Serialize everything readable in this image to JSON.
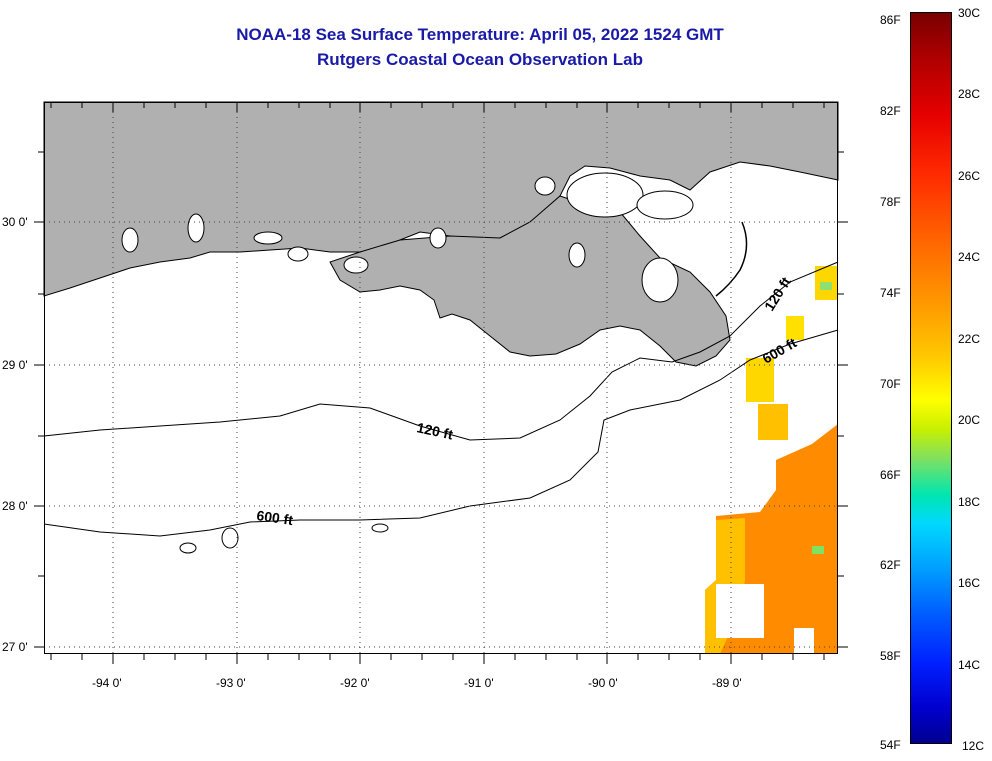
{
  "header": {
    "title": "NOAA-18 Sea Surface Temperature:  April 05, 2022 1524 GMT",
    "subtitle": "Rutgers Coastal Ocean Observation Lab"
  },
  "axes": {
    "lat_labels": [
      "30 0'",
      "29 0'",
      "28 0'",
      "27 0'"
    ],
    "lon_labels": [
      "-94 0'",
      "-93 0'",
      "-92 0'",
      "-91 0'",
      "-90 0'",
      "-89 0'"
    ]
  },
  "contours": {
    "label_120_west": "120 ft",
    "label_600_west": "600 ft",
    "label_120_east": "120 ft",
    "label_600_east": "600 ft"
  },
  "colorbar": {
    "fahrenheit": [
      "86F",
      "82F",
      "78F",
      "74F",
      "70F",
      "66F",
      "62F",
      "58F",
      "54F"
    ],
    "celsius": [
      "30C",
      "28C",
      "26C",
      "24C",
      "22C",
      "20C",
      "18C",
      "16C",
      "14C",
      "12C"
    ]
  },
  "colors": {
    "land": "#b0b0b0",
    "title": "#1a1aa8",
    "sst_warm": "#ff8c00",
    "sst_yellow": "#ffd700"
  }
}
